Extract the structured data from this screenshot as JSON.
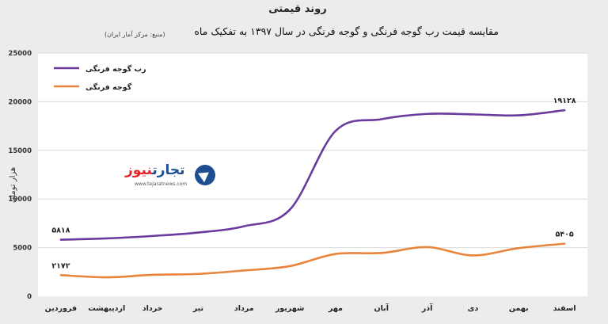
{
  "chart_data": {
    "type": "line",
    "title": "روند قیمتی",
    "subtitle": "مقایسه قیمت رب گوجه فرنگی و گوجه فرنگی در سال ۱۳۹۷ به تفکیک ماه",
    "source": "(منبع: مرکز آمار ایران)",
    "ylabel": "هزار تومان",
    "xlabel": "",
    "ylim": [
      0,
      25000
    ],
    "yticks": [
      "0",
      "5000",
      "10000",
      "15000",
      "20000",
      "25000"
    ],
    "grid": true,
    "legend_position": "top-left",
    "categories": [
      "فروردین",
      "اردیبهشت",
      "خرداد",
      "تیر",
      "مرداد",
      "شهریور",
      "مهر",
      "آبان",
      "آذر",
      "دی",
      "بهمن",
      "اسفند"
    ],
    "series": [
      {
        "name": "رب گوجه فرنگی",
        "color": "#6a3a9e",
        "values": [
          5818,
          5950,
          6200,
          6550,
          7200,
          8900,
          17000,
          18200,
          18750,
          18700,
          18600,
          19128
        ],
        "labels": {
          "0": "۵۸۱۸",
          "11": "۱۹۱۲۸"
        }
      },
      {
        "name": "گوجه فرنگی",
        "color": "#e8843c",
        "values": [
          2172,
          1950,
          2200,
          2300,
          2650,
          3100,
          4350,
          4450,
          5050,
          4200,
          4950,
          5405
        ],
        "labels": {
          "0": "۲۱۷۲",
          "11": "۵۴۰۵"
        }
      }
    ]
  },
  "logo": {
    "part1": "تجارت",
    "part2": "نیوز",
    "url": "www.tejaratnews.com"
  }
}
